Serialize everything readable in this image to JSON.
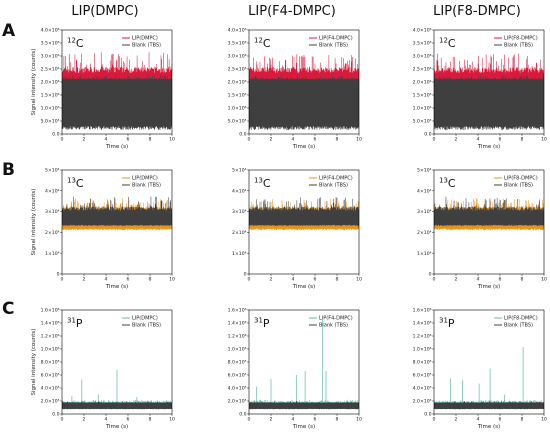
{
  "columns": [
    "LIP(DMPC)",
    "LIP(F4-DMPC)",
    "LIP(F8-DMPC)"
  ],
  "rows": [
    "A",
    "B",
    "C"
  ],
  "chart_data": [
    {
      "panel": "A1",
      "type": "line",
      "isotope_mass": "12",
      "isotope_symbol": "C",
      "xlabel": "Time (s)",
      "ylabel": "Signal intensity (counts)",
      "xlim": [
        0,
        10
      ],
      "ylim": [
        0,
        4000000
      ],
      "xticks": [
        "0",
        "2",
        "4",
        "6",
        "8",
        "10"
      ],
      "yticks": [
        "0.0",
        "5.0×10⁵",
        "1.0×10⁶",
        "1.5×10⁶",
        "2.0×10⁶",
        "2.5×10⁶",
        "3.0×10⁶",
        "3.5×10⁶",
        "4.0×10⁶"
      ],
      "series": [
        {
          "name": "LIP(DMPC)",
          "color": "#d81b3c",
          "low": 1000000,
          "high": 2350000,
          "spike_max": 3150000,
          "spikes": []
        },
        {
          "name": "Blank (TBS)",
          "color": "#404040",
          "low": 300000,
          "high": 2100000,
          "spike_max": 2250000,
          "spikes": []
        }
      ]
    },
    {
      "panel": "A2",
      "type": "line",
      "isotope_mass": "12",
      "isotope_symbol": "C",
      "xlabel": "Time (s)",
      "ylabel": "",
      "xlim": [
        0,
        10
      ],
      "ylim": [
        0,
        4000000
      ],
      "xticks": [
        "0",
        "2",
        "4",
        "6",
        "8",
        "10"
      ],
      "yticks": [
        "0.0",
        "5.0×10⁵",
        "1.0×10⁶",
        "1.5×10⁶",
        "2.0×10⁶",
        "2.5×10⁶",
        "3.0×10⁶",
        "3.5×10⁶",
        "4.0×10⁶"
      ],
      "series": [
        {
          "name": "LIP(F4-DMPC)",
          "color": "#d81b3c",
          "low": 1000000,
          "high": 2350000,
          "spike_max": 3100000,
          "spikes": []
        },
        {
          "name": "Blank (TBS)",
          "color": "#404040",
          "low": 300000,
          "high": 2100000,
          "spike_max": 2250000,
          "spikes": []
        }
      ]
    },
    {
      "panel": "A3",
      "type": "line",
      "isotope_mass": "12",
      "isotope_symbol": "C",
      "xlabel": "Time (s)",
      "ylabel": "",
      "xlim": [
        0,
        10
      ],
      "ylim": [
        0,
        4000000
      ],
      "xticks": [
        "0",
        "2",
        "4",
        "6",
        "8",
        "10"
      ],
      "yticks": [
        "0.0",
        "5.0×10⁵",
        "1.0×10⁶",
        "1.5×10⁶",
        "2.0×10⁶",
        "2.5×10⁶",
        "3.0×10⁶",
        "3.5×10⁶",
        "4.0×10⁶"
      ],
      "series": [
        {
          "name": "LIP(F8-DMPC)",
          "color": "#d81b3c",
          "low": 1000000,
          "high": 2350000,
          "spike_max": 3100000,
          "spikes": []
        },
        {
          "name": "Blank (TBS)",
          "color": "#404040",
          "low": 300000,
          "high": 2100000,
          "spike_max": 2250000,
          "spikes": []
        }
      ]
    },
    {
      "panel": "B1",
      "type": "line",
      "isotope_mass": "13",
      "isotope_symbol": "C",
      "xlabel": "Time (s)",
      "ylabel": "Signal intensity (counts)",
      "xlim": [
        0,
        10
      ],
      "ylim": [
        0,
        55000
      ],
      "xticks": [
        "0",
        "2",
        "4",
        "6",
        "8",
        "10"
      ],
      "yticks": [
        "0",
        "1×10⁴",
        "2×10⁴",
        "3×10⁴",
        "4×10⁴",
        "5×10⁴"
      ],
      "series": [
        {
          "name": "LIP(DMPC)",
          "color": "#e8941a",
          "low": 24000,
          "high": 34000,
          "spike_max": 40000,
          "spikes": []
        },
        {
          "name": "Blank (TBS)",
          "color": "#404040",
          "low": 26000,
          "high": 33500,
          "spike_max": 41000,
          "spikes": []
        }
      ]
    },
    {
      "panel": "B2",
      "type": "line",
      "isotope_mass": "13",
      "isotope_symbol": "C",
      "xlabel": "Time (s)",
      "ylabel": "",
      "xlim": [
        0,
        10
      ],
      "ylim": [
        0,
        55000
      ],
      "xticks": [
        "0",
        "2",
        "4",
        "6",
        "8",
        "10"
      ],
      "yticks": [
        "0",
        "1×10⁴",
        "2×10⁴",
        "3×10⁴",
        "4×10⁴",
        "5×10⁴"
      ],
      "series": [
        {
          "name": "LIP(F4-DMPC)",
          "color": "#e8941a",
          "low": 24000,
          "high": 34000,
          "spike_max": 40000,
          "spikes": []
        },
        {
          "name": "Blank (TBS)",
          "color": "#404040",
          "low": 26000,
          "high": 33500,
          "spike_max": 41000,
          "spikes": []
        }
      ]
    },
    {
      "panel": "B3",
      "type": "line",
      "isotope_mass": "13",
      "isotope_symbol": "C",
      "xlabel": "Time (s)",
      "ylabel": "",
      "xlim": [
        0,
        10
      ],
      "ylim": [
        0,
        55000
      ],
      "xticks": [
        "0",
        "2",
        "4",
        "6",
        "8",
        "10"
      ],
      "yticks": [
        "0",
        "1×10⁴",
        "2×10⁴",
        "3×10⁴",
        "4×10⁴",
        "5×10⁴"
      ],
      "series": [
        {
          "name": "LIP(F8-DMPC)",
          "color": "#e8941a",
          "low": 24000,
          "high": 34000,
          "spike_max": 40000,
          "spikes": []
        },
        {
          "name": "Blank (TBS)",
          "color": "#404040",
          "low": 26000,
          "high": 33500,
          "spike_max": 41000,
          "spikes": []
        }
      ]
    },
    {
      "panel": "C1",
      "type": "line",
      "isotope_mass": "31",
      "isotope_symbol": "P",
      "xlabel": "Time (s)",
      "ylabel": "Signal intensity (counts)",
      "xlim": [
        0,
        10
      ],
      "ylim": [
        0,
        1600000
      ],
      "xticks": [
        "0",
        "2",
        "4",
        "6",
        "8",
        "10"
      ],
      "yticks": [
        "0.0",
        "2.0×10⁵",
        "4.0×10⁵",
        "6.0×10⁵",
        "8.0×10⁵",
        "1.0×10⁶",
        "1.2×10⁶",
        "1.4×10⁶",
        "1.6×10⁶"
      ],
      "series": [
        {
          "name": "LIP(DMPC)",
          "color": "#5fb8a8",
          "low": 100000,
          "high": 180000,
          "spike_max": 220000,
          "spikes": [
            [
              0.9,
              280000
            ],
            [
              1.8,
              530000
            ],
            [
              3.3,
              300000
            ],
            [
              5.0,
              680000
            ],
            [
              6.8,
              260000
            ]
          ]
        },
        {
          "name": "Blank (TBS)",
          "color": "#404040",
          "low": 80000,
          "high": 170000,
          "spike_max": 200000,
          "spikes": []
        }
      ]
    },
    {
      "panel": "C2",
      "type": "line",
      "isotope_mass": "31",
      "isotope_symbol": "P",
      "xlabel": "Time (s)",
      "ylabel": "",
      "xlim": [
        0,
        10
      ],
      "ylim": [
        0,
        1600000
      ],
      "xticks": [
        "0",
        "2",
        "4",
        "6",
        "8",
        "10"
      ],
      "yticks": [
        "0.0",
        "2.0×10⁵",
        "4.0×10⁵",
        "6.0×10⁵",
        "8.0×10⁵",
        "1.0×10⁶",
        "1.2×10⁶",
        "1.4×10⁶",
        "1.6×10⁶"
      ],
      "series": [
        {
          "name": "LIP(F4-DMPC)",
          "color": "#5fb8a8",
          "low": 100000,
          "high": 180000,
          "spike_max": 220000,
          "spikes": [
            [
              0.7,
              420000
            ],
            [
              2.0,
              540000
            ],
            [
              4.3,
              600000
            ],
            [
              5.1,
              660000
            ],
            [
              6.7,
              1450000
            ],
            [
              7.0,
              660000
            ]
          ]
        },
        {
          "name": "Blank (TBS)",
          "color": "#404040",
          "low": 80000,
          "high": 170000,
          "spike_max": 200000,
          "spikes": []
        }
      ]
    },
    {
      "panel": "C3",
      "type": "line",
      "isotope_mass": "31",
      "isotope_symbol": "P",
      "xlabel": "Time (s)",
      "ylabel": "",
      "xlim": [
        0,
        10
      ],
      "ylim": [
        0,
        1600000
      ],
      "xticks": [
        "0",
        "2",
        "4",
        "6",
        "8",
        "10"
      ],
      "yticks": [
        "0.0",
        "2.0×10⁵",
        "4.0×10⁵",
        "6.0×10⁵",
        "8.0×10⁵",
        "1.0×10⁶",
        "1.2×10⁶",
        "1.4×10⁶",
        "1.6×10⁶"
      ],
      "series": [
        {
          "name": "LIP(F8-DMPC)",
          "color": "#5fb8a8",
          "low": 100000,
          "high": 180000,
          "spike_max": 220000,
          "spikes": [
            [
              1.5,
              540000
            ],
            [
              2.6,
              520000
            ],
            [
              4.1,
              470000
            ],
            [
              5.1,
              700000
            ],
            [
              6.4,
              300000
            ],
            [
              8.1,
              1030000
            ]
          ]
        },
        {
          "name": "Blank (TBS)",
          "color": "#404040",
          "low": 80000,
          "high": 170000,
          "spike_max": 200000,
          "spikes": []
        }
      ]
    }
  ]
}
